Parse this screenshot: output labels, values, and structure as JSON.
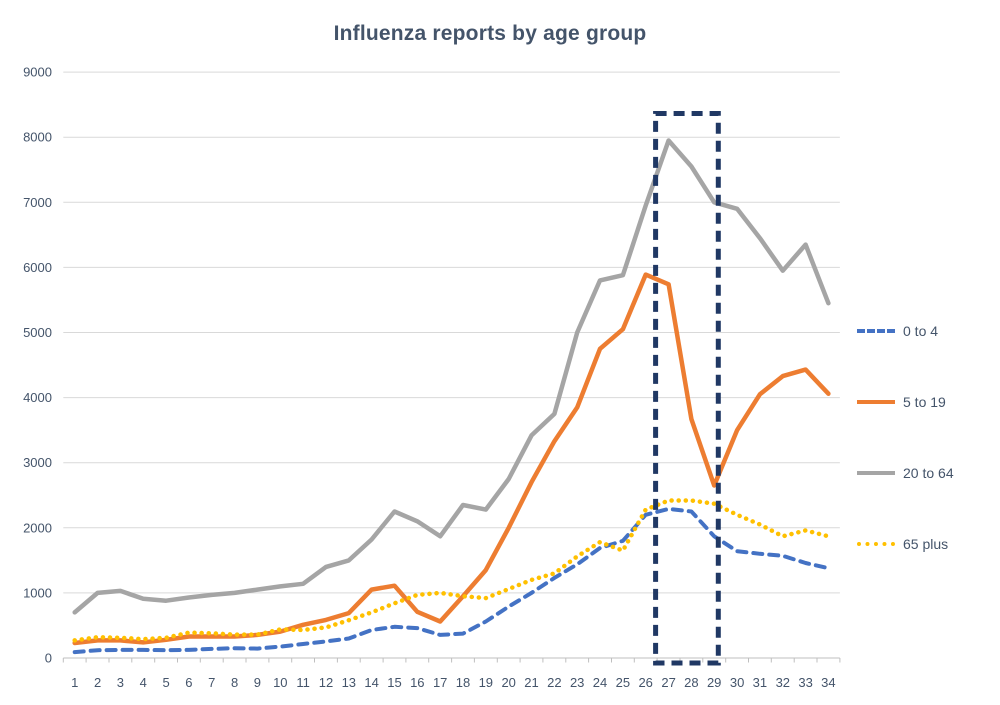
{
  "title": "Influenza reports by age group",
  "legend": {
    "items": [
      {
        "label": "0 to 4"
      },
      {
        "label": "5 to 19"
      },
      {
        "label": "20 to 64"
      },
      {
        "label": "65 plus"
      }
    ]
  },
  "chart_data": {
    "type": "line",
    "title": "Influenza reports by age group",
    "xlabel": "",
    "ylabel": "",
    "ylim": [
      0,
      9000
    ],
    "grid": true,
    "legend_position": "right",
    "x_labels": [
      "1",
      "2",
      "3",
      "4",
      "5",
      "6",
      "7",
      "8",
      "9",
      "10",
      "11",
      "12",
      "13",
      "14",
      "15",
      "16",
      "17",
      "18",
      "19",
      "20",
      "21",
      "22",
      "23",
      "24",
      "25",
      "26",
      "27",
      "28",
      "29",
      "30",
      "31",
      "32",
      "33",
      "34"
    ],
    "y_ticks": [
      0,
      1000,
      2000,
      3000,
      4000,
      5000,
      6000,
      7000,
      8000,
      9000
    ],
    "gridline_color": "#D9D9D9",
    "axis_line_color": "#BFBFBF",
    "axis_label_color": "#44546A",
    "series": [
      {
        "name": "0 to 4",
        "color": "#4472C4",
        "style": "dashed",
        "values": [
          90,
          120,
          125,
          125,
          120,
          125,
          140,
          150,
          145,
          175,
          215,
          255,
          300,
          430,
          480,
          460,
          355,
          375,
          560,
          790,
          1000,
          1230,
          1440,
          1690,
          1800,
          2200,
          2290,
          2250,
          1870,
          1640,
          1600,
          1570,
          1460,
          1380
        ]
      },
      {
        "name": "5 to 19",
        "color": "#ED7D31",
        "style": "solid",
        "values": [
          230,
          270,
          270,
          240,
          280,
          330,
          330,
          330,
          355,
          405,
          510,
          585,
          690,
          1050,
          1110,
          710,
          560,
          950,
          1350,
          2000,
          2700,
          3330,
          3850,
          4750,
          5050,
          5890,
          5740,
          3670,
          2650,
          3500,
          4050,
          4330,
          4430,
          4060
        ]
      },
      {
        "name": "20 to 64",
        "color": "#A5A5A5",
        "style": "solid",
        "values": [
          700,
          1000,
          1030,
          910,
          880,
          930,
          970,
          1000,
          1050,
          1100,
          1140,
          1400,
          1500,
          1820,
          2250,
          2100,
          1870,
          2350,
          2280,
          2750,
          3420,
          3750,
          5000,
          5800,
          5880,
          6950,
          7950,
          7550,
          7000,
          6900,
          6450,
          5950,
          6350,
          5450
        ]
      },
      {
        "name": "65 plus",
        "color": "#FFC000",
        "style": "dotted",
        "values": [
          270,
          320,
          310,
          290,
          310,
          390,
          380,
          360,
          360,
          440,
          430,
          470,
          580,
          700,
          840,
          970,
          1000,
          950,
          920,
          1060,
          1200,
          1300,
          1560,
          1780,
          1650,
          2280,
          2420,
          2420,
          2370,
          2200,
          2050,
          1870,
          1960,
          1870
        ]
      }
    ],
    "highlight_box": {
      "from_week": 27,
      "to_week": 29,
      "color": "#203864",
      "style": "dashed"
    }
  }
}
